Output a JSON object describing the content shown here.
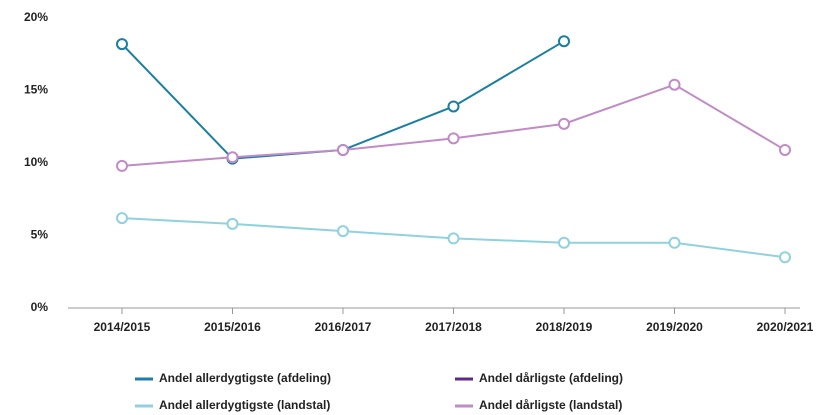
{
  "chart_data": {
    "type": "line",
    "categories": [
      "2014/2015",
      "2015/2016",
      "2016/2017",
      "2017/2018",
      "2018/2019",
      "2019/2020",
      "2020/2021"
    ],
    "series": [
      {
        "name": "Andel allerdygtigste (afdeling)",
        "color": "#1b7ea3",
        "values": [
          18.2,
          10.3,
          10.9,
          13.9,
          18.4,
          null,
          null
        ]
      },
      {
        "name": "Andel dårligste (afdeling)",
        "color": "#5e2a84",
        "values": [
          null,
          null,
          null,
          null,
          null,
          null,
          null
        ]
      },
      {
        "name": "Andel allerdygtigste (landstal)",
        "color": "#8fd2de",
        "values": [
          6.2,
          5.8,
          5.3,
          4.8,
          4.5,
          4.5,
          3.5
        ]
      },
      {
        "name": "Andel dårligste (landstal)",
        "color": "#c18bc6",
        "values": [
          9.8,
          10.4,
          10.9,
          11.7,
          12.7,
          15.4,
          10.9
        ]
      }
    ],
    "ylim": [
      0,
      20
    ],
    "yticks": [
      {
        "value": 0,
        "label": "0%"
      },
      {
        "value": 5,
        "label": "5%"
      },
      {
        "value": 10,
        "label": "10%"
      },
      {
        "value": 15,
        "label": "15%"
      },
      {
        "value": 20,
        "label": "20%"
      }
    ],
    "legend": "bottom"
  }
}
